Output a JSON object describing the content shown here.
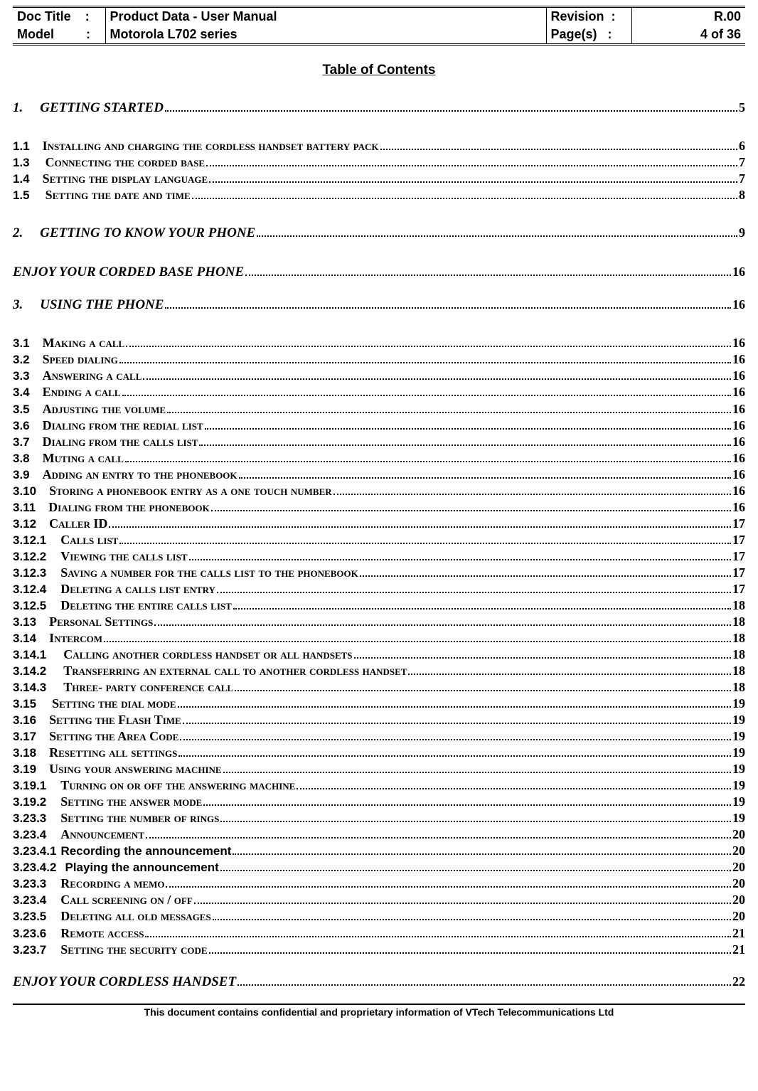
{
  "header": {
    "docTitleLabel": "Doc Title",
    "docTitleValue": "Product Data - User Manual",
    "modelLabel": "Model",
    "modelValue": "Motorola L702 series",
    "revisionLabel": "Revision",
    "revisionValue": "R.00",
    "pagesLabel": "Page(s)",
    "pagesValue": "4 of 36",
    "colon": ":"
  },
  "tocTitle": "Table of Contents",
  "entries": [
    {
      "type": "l0",
      "num": "1.",
      "numGap": 24,
      "title": "GETTING STARTED",
      "page": "5",
      "gapAfter": "lg"
    },
    {
      "type": "l1",
      "num": "1.1",
      "numGap": 18,
      "title": "Installing and charging the cordless handset battery pack",
      "page": "6"
    },
    {
      "type": "l1",
      "num": "1.3",
      "numGap": 22,
      "title": "Connecting the corded base",
      "page": "7"
    },
    {
      "type": "l1",
      "num": "1.4",
      "numGap": 18,
      "title": "Setting the display language",
      "page": "7"
    },
    {
      "type": "l1",
      "num": "1.5",
      "numGap": 22,
      "title": "Setting the date and time",
      "page": "8",
      "gapAfter": "lg"
    },
    {
      "type": "l0",
      "num": "2.",
      "numGap": 24,
      "title": "GETTING TO KNOW YOUR PHONE",
      "page": "9",
      "gapAfter": "lg"
    },
    {
      "type": "lS",
      "num": "",
      "numGap": 0,
      "title": "ENJOY YOUR CORDED BASE PHONE",
      "page": "16",
      "gapAfter": "md"
    },
    {
      "type": "l0",
      "num": "3.",
      "numGap": 24,
      "title": "USING THE PHONE",
      "page": "16",
      "gapAfter": "lg"
    },
    {
      "type": "l1",
      "num": "3.1",
      "numGap": 18,
      "title": "Making a call",
      "page": "16"
    },
    {
      "type": "l1",
      "num": "3.2",
      "numGap": 18,
      "title": "Speed dialing",
      "page": "16"
    },
    {
      "type": "l1",
      "num": "3.3",
      "numGap": 18,
      "title": "Answering a call",
      "page": "16"
    },
    {
      "type": "l1",
      "num": "3.4",
      "numGap": 18,
      "title": "Ending a call",
      "page": "16"
    },
    {
      "type": "l1",
      "num": "3.5",
      "numGap": 18,
      "title": "Adjusting the volume",
      "page": "16"
    },
    {
      "type": "l1",
      "num": "3.6",
      "numGap": 18,
      "title": "Dialing from the redial list",
      "page": "16"
    },
    {
      "type": "l1",
      "num": "3.7",
      "numGap": 18,
      "title": "Dialing from the calls list",
      "page": "16"
    },
    {
      "type": "l1",
      "num": "3.8",
      "numGap": 18,
      "title": "Muting a call",
      "page": "16"
    },
    {
      "type": "l1",
      "num": "3.9",
      "numGap": 18,
      "title": "Adding an entry to the phonebook",
      "page": "16"
    },
    {
      "type": "l1",
      "num": "3.10",
      "numGap": 18,
      "title": "Storing a phonebook entry as a one touch number",
      "page": "16"
    },
    {
      "type": "l1",
      "num": "3.11",
      "numGap": 18,
      "title": "Dialing from the phonebook",
      "page": "16"
    },
    {
      "type": "l1",
      "num": "3.12",
      "numGap": 18,
      "title": "Caller ID",
      "page": "17"
    },
    {
      "type": "l2",
      "num": "3.12.1",
      "numGap": 20,
      "title": "Calls list",
      "page": "17"
    },
    {
      "type": "l2",
      "num": "3.12.2",
      "numGap": 20,
      "title": "Viewing the calls list",
      "page": "17"
    },
    {
      "type": "l2",
      "num": "3.12.3",
      "numGap": 20,
      "title": "Saving a number for the calls list to the phonebook",
      "page": "17"
    },
    {
      "type": "l2",
      "num": "3.12.4",
      "numGap": 20,
      "title": "Deleting  a calls list entry",
      "page": "17"
    },
    {
      "type": "l2",
      "num": "3.12.5",
      "numGap": 20,
      "title": "Deleting the entire calls list",
      "page": "18"
    },
    {
      "type": "l1",
      "num": "3.13",
      "numGap": 18,
      "title": "Personal Settings",
      "page": "18"
    },
    {
      "type": "l1",
      "num": "3.14",
      "numGap": 18,
      "title": "Intercom",
      "page": "18"
    },
    {
      "type": "l2",
      "num": "3.14.1",
      "numGap": 24,
      "title": "Calling another cordless handset or all handsets",
      "page": "18"
    },
    {
      "type": "l2",
      "num": "3.14.2",
      "numGap": 24,
      "title": "Transferring an external call to another cordless handset",
      "page": "18"
    },
    {
      "type": "l2",
      "num": "3.14.3",
      "numGap": 24,
      "title": "Three- party conference call",
      "page": "18"
    },
    {
      "type": "l1",
      "num": "3.15",
      "numGap": 22,
      "title": "Setting the dial mode",
      "page": "19"
    },
    {
      "type": "l1",
      "num": "3.16",
      "numGap": 18,
      "title": "Setting the Flash Time",
      "page": "19"
    },
    {
      "type": "l1",
      "num": "3.17",
      "numGap": 18,
      "title": "Setting the Area Code",
      "page": "19"
    },
    {
      "type": "l1",
      "num": "3.18",
      "numGap": 18,
      "title": "Resetting all settings",
      "page": "19"
    },
    {
      "type": "l1",
      "num": "3.19",
      "numGap": 18,
      "title": "Using your answering machine",
      "page": "19"
    },
    {
      "type": "l2",
      "num": "3.19.1",
      "numGap": 20,
      "title": "Turning on or off the answering machine",
      "page": "19"
    },
    {
      "type": "l2",
      "num": "3.19.2",
      "numGap": 20,
      "title": "Setting the answer mode",
      "page": "19"
    },
    {
      "type": "l2",
      "num": "3.23.3",
      "numGap": 20,
      "title": "Setting the number of rings",
      "page": "19"
    },
    {
      "type": "l2",
      "num": "3.23.4",
      "numGap": 20,
      "title": "Announcement",
      "page": "20"
    },
    {
      "type": "l3",
      "num": "3.23.4.1",
      "numGap": 6,
      "title": "Recording the announcement",
      "page": "20"
    },
    {
      "type": "l3",
      "num": "3.23.4.2",
      "numGap": 12,
      "title": "Playing the announcement",
      "page": "20"
    },
    {
      "type": "l2",
      "num": "3.23.3",
      "numGap": 20,
      "title": "Recording a memo",
      "page": "20"
    },
    {
      "type": "l2",
      "num": "3.23.4",
      "numGap": 20,
      "title": "Call screening on / off",
      "page": "20"
    },
    {
      "type": "l2",
      "num": "3.23.5",
      "numGap": 20,
      "title": "Deleting all old messages",
      "page": "20"
    },
    {
      "type": "l2",
      "num": "3.23.6",
      "numGap": 20,
      "title": "Remote access",
      "page": "21"
    },
    {
      "type": "l2",
      "num": "3.23.7",
      "numGap": 20,
      "title": "Setting the security code",
      "page": "21",
      "gapAfter": "md"
    },
    {
      "type": "lS",
      "num": "",
      "numGap": 0,
      "title": "ENJOY YOUR CORDLESS HANDSET",
      "page": "22"
    }
  ],
  "footer": "This document contains confidential and proprietary information of VTech Telecommunications Ltd"
}
